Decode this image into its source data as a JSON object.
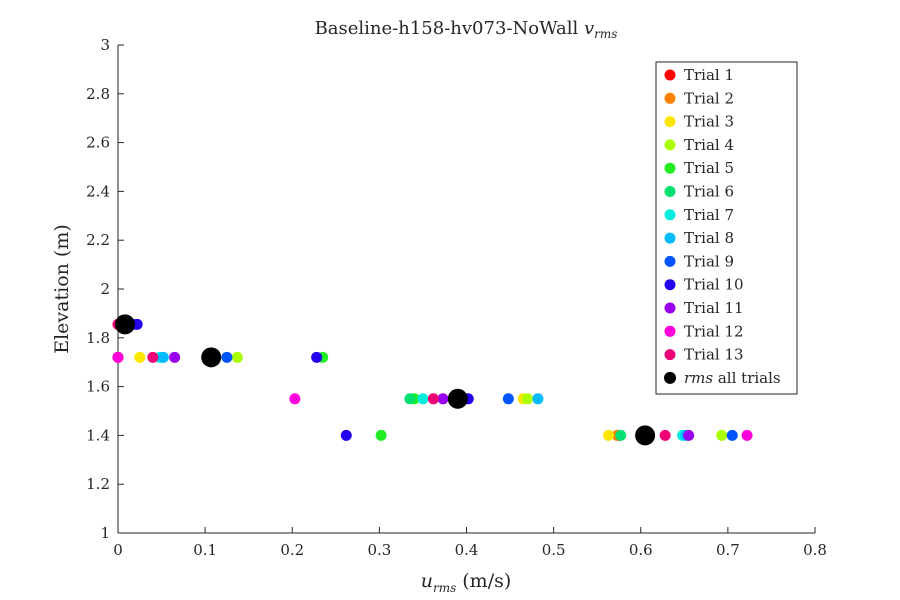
{
  "chart_data": {
    "type": "scatter",
    "title": "Baseline-h158-hv073-NoWall ",
    "title_math": {
      "base": "v",
      "sub": "rms"
    },
    "xlabel": {
      "base": "u",
      "sub": "rms",
      "unit": " (m/s)"
    },
    "ylabel": "Elevation (m)",
    "xlim": [
      0,
      0.8
    ],
    "ylim": [
      1,
      3
    ],
    "xticks": [
      {
        "value": 0,
        "label": "0"
      },
      {
        "value": 0.1,
        "label": "0.1"
      },
      {
        "value": 0.2,
        "label": "0.2"
      },
      {
        "value": 0.3,
        "label": "0.3"
      },
      {
        "value": 0.4,
        "label": "0.4"
      },
      {
        "value": 0.5,
        "label": "0.5"
      },
      {
        "value": 0.6,
        "label": "0.6"
      },
      {
        "value": 0.7,
        "label": "0.7"
      },
      {
        "value": 0.8,
        "label": "0.8"
      }
    ],
    "yticks": [
      {
        "value": 1,
        "label": "1"
      },
      {
        "value": 1.2,
        "label": "1.2"
      },
      {
        "value": 1.4,
        "label": "1.4"
      },
      {
        "value": 1.6,
        "label": "1.6"
      },
      {
        "value": 1.8,
        "label": "1.8"
      },
      {
        "value": 2,
        "label": "2"
      },
      {
        "value": 2.2,
        "label": "2.2"
      },
      {
        "value": 2.4,
        "label": "2.4"
      },
      {
        "value": 2.6,
        "label": "2.6"
      },
      {
        "value": 2.8,
        "label": "2.8"
      },
      {
        "value": 3,
        "label": "3"
      }
    ],
    "grid": false,
    "legend_position": "top-right",
    "series": [
      {
        "name": "Trial 1",
        "color": "#ff0000",
        "points": [
          [
            0.0,
            1.855
          ],
          [
            0.0,
            1.72
          ],
          [
            0.39,
            1.55
          ],
          [
            0.575,
            1.4
          ]
        ]
      },
      {
        "name": "Trial 2",
        "color": "#ff7f00",
        "points": [
          [
            0.003,
            1.855
          ],
          [
            0.11,
            1.72
          ],
          [
            0.385,
            1.55
          ],
          [
            0.573,
            1.4
          ]
        ]
      },
      {
        "name": "Trial 3",
        "color": "#ffe600",
        "points": [
          [
            0.008,
            1.855
          ],
          [
            0.025,
            1.72
          ],
          [
            0.465,
            1.55
          ],
          [
            0.563,
            1.4
          ]
        ]
      },
      {
        "name": "Trial 4",
        "color": "#aaff00",
        "points": [
          [
            0.01,
            1.855
          ],
          [
            0.137,
            1.72
          ],
          [
            0.47,
            1.55
          ],
          [
            0.693,
            1.4
          ]
        ]
      },
      {
        "name": "Trial 5",
        "color": "#22ee22",
        "points": [
          [
            0.005,
            1.855
          ],
          [
            0.235,
            1.72
          ],
          [
            0.34,
            1.55
          ],
          [
            0.302,
            1.4
          ]
        ]
      },
      {
        "name": "Trial 6",
        "color": "#00e070",
        "points": [
          [
            0.008,
            1.855
          ],
          [
            0.105,
            1.72
          ],
          [
            0.335,
            1.55
          ],
          [
            0.577,
            1.4
          ]
        ]
      },
      {
        "name": "Trial 7",
        "color": "#00eedd",
        "points": [
          [
            0.005,
            1.855
          ],
          [
            0.048,
            1.72
          ],
          [
            0.35,
            1.55
          ],
          [
            0.648,
            1.4
          ]
        ]
      },
      {
        "name": "Trial 8",
        "color": "#00bbff",
        "points": [
          [
            0.01,
            1.855
          ],
          [
            0.052,
            1.72
          ],
          [
            0.482,
            1.55
          ],
          [
            0.652,
            1.4
          ]
        ]
      },
      {
        "name": "Trial 9",
        "color": "#0055ff",
        "points": [
          [
            0.018,
            1.855
          ],
          [
            0.125,
            1.72
          ],
          [
            0.448,
            1.55
          ],
          [
            0.705,
            1.4
          ]
        ]
      },
      {
        "name": "Trial 10",
        "color": "#2200ee",
        "points": [
          [
            0.022,
            1.855
          ],
          [
            0.228,
            1.72
          ],
          [
            0.402,
            1.55
          ],
          [
            0.262,
            1.4
          ]
        ]
      },
      {
        "name": "Trial 11",
        "color": "#9900ee",
        "points": [
          [
            0.012,
            1.855
          ],
          [
            0.065,
            1.72
          ],
          [
            0.373,
            1.55
          ],
          [
            0.655,
            1.4
          ]
        ]
      },
      {
        "name": "Trial 12",
        "color": "#ff00dd",
        "points": [
          [
            0.005,
            1.855
          ],
          [
            0.0,
            1.72
          ],
          [
            0.203,
            1.55
          ],
          [
            0.722,
            1.4
          ]
        ]
      },
      {
        "name": "Trial 13",
        "color": "#ee0077",
        "points": [
          [
            0.0,
            1.855
          ],
          [
            0.04,
            1.72
          ],
          [
            0.362,
            1.55
          ],
          [
            0.628,
            1.4
          ]
        ]
      },
      {
        "name": "rms all trials",
        "name_math": true,
        "color": "#000000",
        "large": true,
        "points": [
          [
            0.008,
            1.855
          ],
          [
            0.107,
            1.72
          ],
          [
            0.39,
            1.55
          ],
          [
            0.605,
            1.4
          ]
        ]
      }
    ]
  }
}
